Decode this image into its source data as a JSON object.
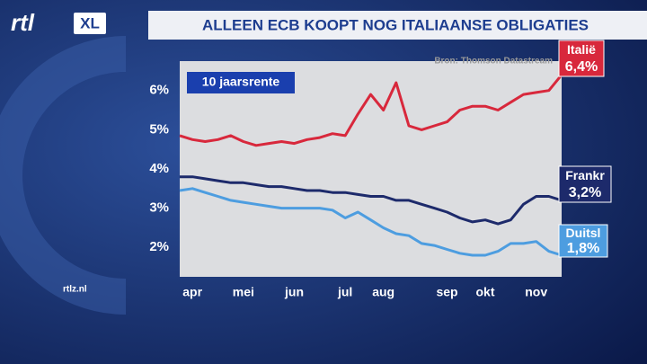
{
  "branding": {
    "logo": "rtl",
    "logo_badge": "XL",
    "website": "rtlz.nl"
  },
  "chart_data": {
    "type": "line",
    "title": "ALLEEN ECB KOOPT NOG ITALIAANSE OBLIGATIES",
    "source": "Bron: Thomson Datastream",
    "annotation": "10 jaarsrente",
    "categories": [
      null,
      "apr",
      null,
      null,
      null,
      "mei",
      null,
      null,
      null,
      "jun",
      null,
      null,
      null,
      "jul",
      null,
      null,
      "aug",
      null,
      null,
      null,
      null,
      "sep",
      null,
      null,
      "okt",
      null,
      null,
      null,
      "nov",
      null,
      null
    ],
    "ylim": [
      1.25,
      6.75
    ],
    "yticks": [
      {
        "value": 2,
        "label": "2%"
      },
      {
        "value": 3,
        "label": "3%"
      },
      {
        "value": 4,
        "label": "4%"
      },
      {
        "value": 5,
        "label": "5%"
      },
      {
        "value": 6,
        "label": "6%"
      }
    ],
    "series": [
      {
        "name": "Italië",
        "color": "#d8283c",
        "values": [
          4.85,
          4.75,
          4.7,
          4.75,
          4.85,
          4.7,
          4.6,
          4.65,
          4.7,
          4.65,
          4.75,
          4.8,
          4.9,
          4.85,
          5.4,
          5.9,
          5.5,
          6.2,
          5.1,
          5.0,
          5.1,
          5.2,
          5.5,
          5.6,
          5.6,
          5.5,
          5.7,
          5.9,
          5.95,
          6.0,
          6.4
        ],
        "value_labels": [
          null,
          null,
          null,
          null,
          null,
          null,
          null,
          null,
          null,
          null,
          null,
          null,
          null,
          null,
          null,
          null,
          null,
          null,
          null,
          null,
          null,
          null,
          null,
          null,
          null,
          null,
          null,
          null,
          null,
          null,
          "6,4%"
        ]
      },
      {
        "name": "Frankr",
        "color": "#1d2a6b",
        "values": [
          3.8,
          3.8,
          3.75,
          3.7,
          3.65,
          3.65,
          3.6,
          3.55,
          3.55,
          3.5,
          3.45,
          3.45,
          3.4,
          3.4,
          3.35,
          3.3,
          3.3,
          3.2,
          3.2,
          3.1,
          3.0,
          2.9,
          2.75,
          2.65,
          2.7,
          2.6,
          2.7,
          3.1,
          3.3,
          3.3,
          3.2
        ],
        "value_labels": [
          null,
          null,
          null,
          null,
          null,
          null,
          null,
          null,
          null,
          null,
          null,
          null,
          null,
          null,
          null,
          null,
          null,
          null,
          null,
          null,
          null,
          null,
          null,
          null,
          null,
          null,
          null,
          null,
          null,
          null,
          "3,2%"
        ]
      },
      {
        "name": "Duitsl",
        "color": "#4d9de0",
        "values": [
          3.45,
          3.5,
          3.4,
          3.3,
          3.2,
          3.15,
          3.1,
          3.05,
          3.0,
          3.0,
          3.0,
          3.0,
          2.95,
          2.75,
          2.9,
          2.7,
          2.5,
          2.35,
          2.3,
          2.1,
          2.05,
          1.95,
          1.85,
          1.8,
          1.8,
          1.9,
          2.1,
          2.1,
          2.15,
          1.9,
          1.8
        ],
        "value_labels": [
          null,
          null,
          null,
          null,
          null,
          null,
          null,
          null,
          null,
          null,
          null,
          null,
          null,
          null,
          null,
          null,
          null,
          null,
          null,
          null,
          null,
          null,
          null,
          null,
          null,
          null,
          null,
          null,
          null,
          null,
          "1,8%"
        ]
      }
    ]
  }
}
